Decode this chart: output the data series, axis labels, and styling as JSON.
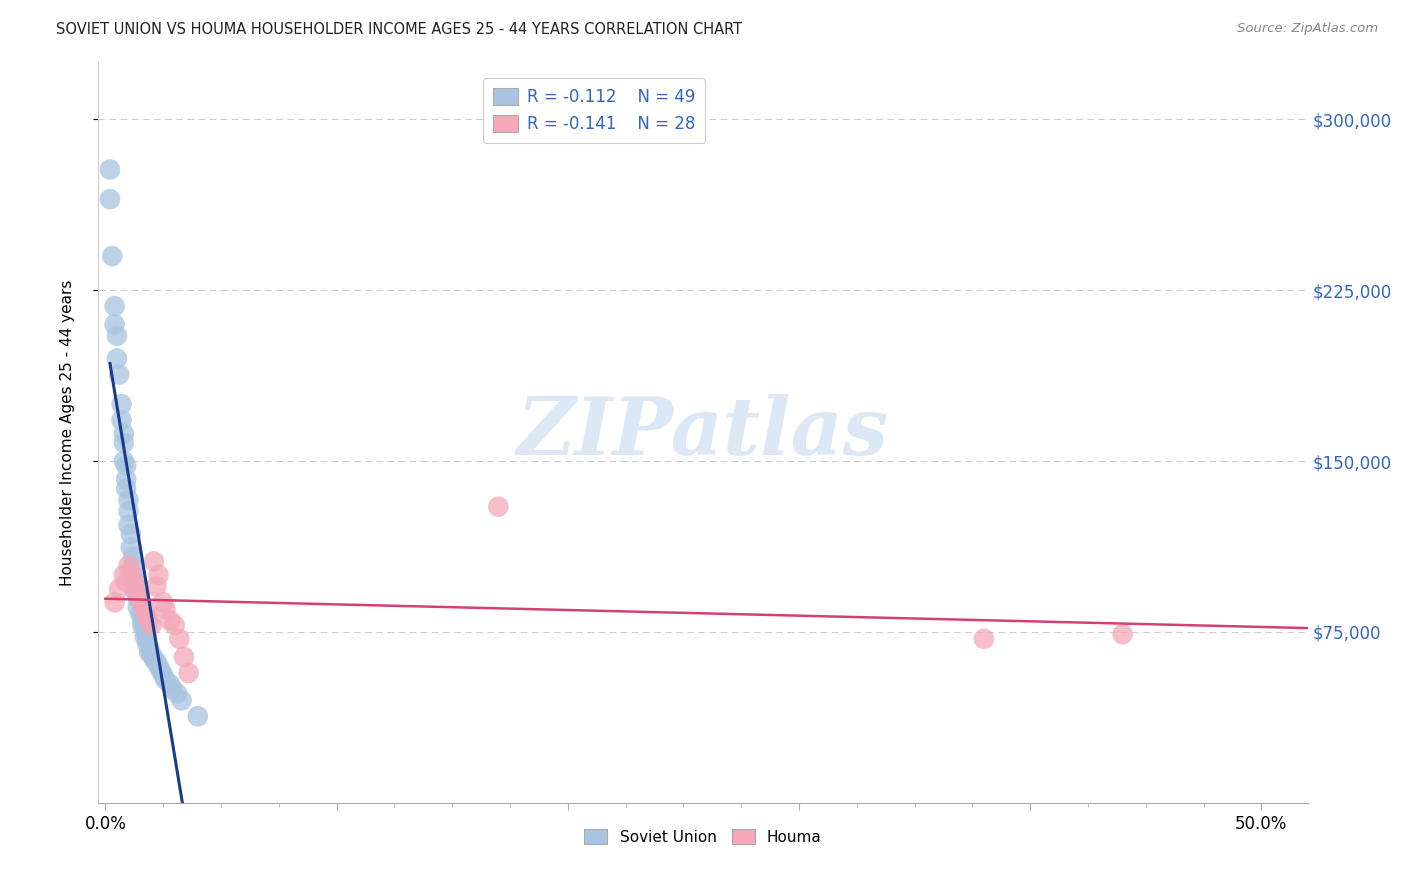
{
  "title": "SOVIET UNION VS HOUMA HOUSEHOLDER INCOME AGES 25 - 44 YEARS CORRELATION CHART",
  "source": "Source: ZipAtlas.com",
  "ylabel": "Householder Income Ages 25 - 44 years",
  "xlim": [
    -0.003,
    0.52
  ],
  "ylim": [
    0,
    325000
  ],
  "ytick_labels": [
    "$75,000",
    "$150,000",
    "$225,000",
    "$300,000"
  ],
  "ytick_values": [
    75000,
    150000,
    225000,
    300000
  ],
  "xtick_values": [
    0.0,
    0.1,
    0.2,
    0.3,
    0.4,
    0.5
  ],
  "xtick_labels": [
    "0.0%",
    "",
    "",
    "",
    "",
    "50.0%"
  ],
  "legend_R1": "R = -0.112",
  "legend_N1": "N = 49",
  "legend_R2": "R = -0.141",
  "legend_N2": "N = 28",
  "soviet_color": "#a8c4e0",
  "houma_color": "#f4a8b8",
  "soviet_line_color": "#1a3a8a",
  "houma_line_color": "#d44070",
  "dashed_line_color": "#90b8d8",
  "watermark_text": "ZIPatlas",
  "watermark_color": "#dce8f5",
  "background_color": "#ffffff",
  "grid_color": "#cccccc",
  "title_color": "#222222",
  "source_color": "#888888",
  "right_tick_color": "#3366bb",
  "soviet_scatter_x": [
    0.002,
    0.002,
    0.003,
    0.004,
    0.004,
    0.005,
    0.005,
    0.006,
    0.007,
    0.007,
    0.008,
    0.008,
    0.008,
    0.009,
    0.009,
    0.009,
    0.01,
    0.01,
    0.01,
    0.011,
    0.011,
    0.012,
    0.012,
    0.012,
    0.013,
    0.013,
    0.014,
    0.014,
    0.015,
    0.016,
    0.016,
    0.017,
    0.017,
    0.018,
    0.018,
    0.019,
    0.019,
    0.02,
    0.021,
    0.022,
    0.023,
    0.024,
    0.025,
    0.026,
    0.028,
    0.029,
    0.031,
    0.033,
    0.04
  ],
  "soviet_scatter_y": [
    278000,
    265000,
    240000,
    218000,
    210000,
    205000,
    195000,
    188000,
    175000,
    168000,
    162000,
    158000,
    150000,
    148000,
    142000,
    138000,
    133000,
    128000,
    122000,
    118000,
    112000,
    108000,
    104000,
    100000,
    97000,
    93000,
    90000,
    86000,
    83000,
    80000,
    78000,
    76000,
    73000,
    72000,
    70000,
    68000,
    66000,
    65000,
    63000,
    62000,
    60000,
    58000,
    56000,
    54000,
    52000,
    50000,
    48000,
    45000,
    38000
  ],
  "houma_scatter_x": [
    0.004,
    0.006,
    0.008,
    0.009,
    0.01,
    0.011,
    0.012,
    0.013,
    0.014,
    0.015,
    0.016,
    0.017,
    0.018,
    0.019,
    0.02,
    0.021,
    0.022,
    0.023,
    0.025,
    0.026,
    0.028,
    0.03,
    0.032,
    0.034,
    0.036,
    0.17,
    0.38,
    0.44
  ],
  "houma_scatter_y": [
    88000,
    94000,
    100000,
    97000,
    104000,
    101000,
    98000,
    95000,
    92000,
    90000,
    87000,
    85000,
    82000,
    80000,
    78000,
    106000,
    95000,
    100000,
    88000,
    85000,
    80000,
    78000,
    72000,
    64000,
    57000,
    130000,
    72000,
    74000
  ]
}
